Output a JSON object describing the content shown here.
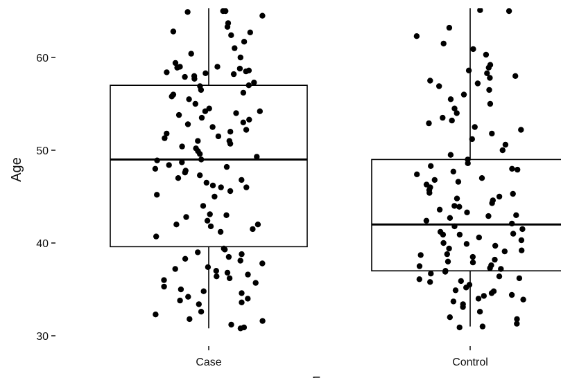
{
  "chart_data": {
    "type": "boxplot-jitter",
    "ylabel": "Age",
    "xlabel": "F",
    "ylim": [
      29,
      65.5
    ],
    "y_ticks": [
      30,
      40,
      50,
      60
    ],
    "categories": [
      "Case",
      "Control"
    ],
    "boxes": [
      {
        "name": "Case",
        "whisker_low": 30.8,
        "q1": 39.6,
        "median": 49.0,
        "q3": 57.0,
        "whisker_high": 65.5
      },
      {
        "name": "Control",
        "whisker_low": 31.0,
        "q1": 37.0,
        "median": 42.0,
        "q3": 49.0,
        "whisker_high": 65.5
      }
    ],
    "points": {
      "Case": [
        65.0,
        64.9,
        65.0,
        64.5,
        63.7,
        63.3,
        62.8,
        62.7,
        62.4,
        61.7,
        61.0,
        60.4,
        60.0,
        59.4,
        59.0,
        59.0,
        58.9,
        58.8,
        58.6,
        58.5,
        58.4,
        58.3,
        58.2,
        58.0,
        57.9,
        57.7,
        57.3,
        57.0,
        56.9,
        56.5,
        56.2,
        56.0,
        55.8,
        55.5,
        55.0,
        54.5,
        54.2,
        54.2,
        54.0,
        53.8,
        53.5,
        53.3,
        53.0,
        52.8,
        52.5,
        52.2,
        52.0,
        51.8,
        51.5,
        51.3,
        51.0,
        51.0,
        50.7,
        50.4,
        50.2,
        49.9,
        49.6,
        49.3,
        49.0,
        48.9,
        48.7,
        48.4,
        48.2,
        48.0,
        47.8,
        47.6,
        47.3,
        47.0,
        46.8,
        46.5,
        46.2,
        46.0,
        46.0,
        45.6,
        45.2,
        45.0,
        44.0,
        43.1,
        43.0,
        42.8,
        42.4,
        42.0,
        42.0,
        41.8,
        41.5,
        41.2,
        40.7,
        39.4,
        39.3,
        39.0,
        38.8,
        38.5,
        38.3,
        38.1,
        37.8,
        37.4,
        37.2,
        37.0,
        36.8,
        36.6,
        36.4,
        36.2,
        36.0,
        35.7,
        35.3,
        35.0,
        34.8,
        34.6,
        34.2,
        34.0,
        33.8,
        33.6,
        33.4,
        32.6,
        32.3,
        31.8,
        31.2,
        30.9,
        30.8,
        31.6
      ],
      "Control": [
        65.1,
        65.0,
        63.2,
        62.3,
        61.5,
        60.9,
        60.3,
        59.2,
        58.9,
        58.6,
        58.3,
        58.0,
        57.8,
        57.5,
        57.2,
        56.9,
        56.5,
        56.0,
        55.5,
        55.0,
        54.5,
        54.0,
        53.5,
        53.2,
        52.9,
        52.5,
        52.2,
        51.8,
        51.2,
        50.6,
        50.0,
        49.5,
        49.0,
        48.6,
        48.3,
        48.0,
        47.7,
        47.4,
        47.0,
        46.6,
        46.3,
        46.0,
        45.7,
        45.4,
        45.0,
        44.6,
        44.3,
        44.0,
        43.6,
        43.3,
        43.0,
        42.7,
        42.4,
        42.1,
        41.8,
        41.5,
        41.2,
        40.9,
        40.6,
        40.3,
        40.0,
        39.7,
        39.4,
        39.1,
        38.8,
        38.5,
        38.2,
        37.9,
        37.6,
        37.3,
        37.0,
        36.7,
        36.4,
        36.1,
        35.8,
        35.5,
        35.2,
        34.9,
        34.6,
        34.3,
        34.0,
        33.7,
        33.4,
        33.1,
        32.6,
        32.0,
        31.8,
        31.3,
        31.0,
        30.9,
        34.4,
        36.9,
        38.7,
        40.9,
        43.9,
        47.9,
        39.2,
        37.5,
        35.9,
        44.8,
        46.8,
        41.0,
        38.0,
        36.2,
        34.8,
        33.9,
        37.2,
        39.9,
        42.9,
        45.3
      ]
    }
  }
}
